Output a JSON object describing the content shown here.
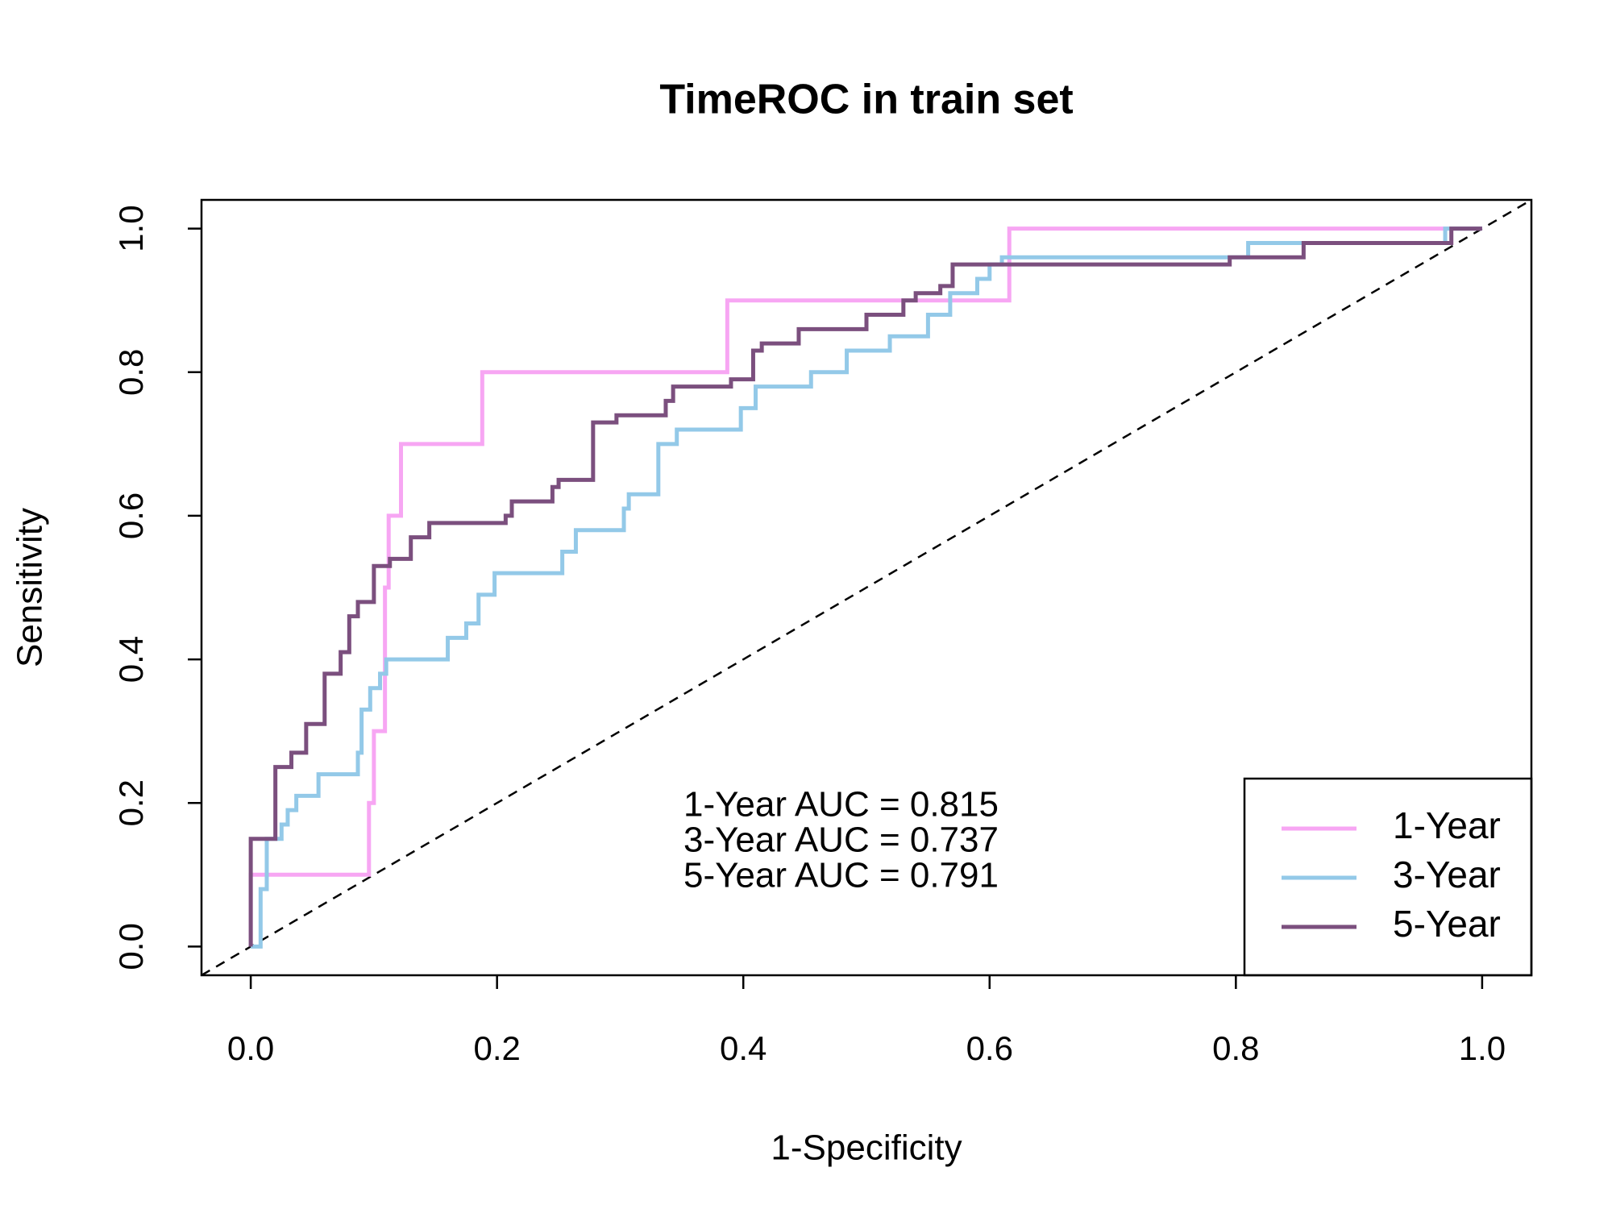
{
  "chart_data": {
    "type": "line",
    "title": "TimeROC in train set",
    "x_label": "1-Specificity",
    "y_label": "Sensitivity",
    "xlim": [
      -0.04,
      1.04
    ],
    "ylim": [
      -0.04,
      1.04
    ],
    "xticks": [
      {
        "value": 0,
        "label": "0.0"
      },
      0.2,
      0.4,
      0.6,
      0.8,
      {
        "value": 1,
        "label": "1.0"
      }
    ],
    "yticks": [
      {
        "value": 0,
        "label": "0.0"
      },
      0.2,
      0.4,
      0.6,
      0.8,
      {
        "value": 1,
        "label": "1.0"
      }
    ],
    "legend": "bottomright",
    "annotations": [
      "1-Year AUC = 0.815",
      "3-Year AUC = 0.737",
      "5-Year AUC = 0.791"
    ],
    "series": [
      {
        "name": "1-Year",
        "color": "#F7A6F3",
        "x": [
          0,
          0,
          0.096,
          0.096,
          0.1,
          0.1,
          0.109,
          0.109,
          0.112,
          0.112,
          0.122,
          0.122,
          0.188,
          0.188,
          0.387,
          0.387,
          0.616,
          0.616,
          1
        ],
        "values": [
          0,
          0.1,
          0.1,
          0.2,
          0.2,
          0.3,
          0.3,
          0.5,
          0.5,
          0.6,
          0.6,
          0.7,
          0.7,
          0.8,
          0.8,
          0.9,
          0.9,
          1,
          1
        ]
      },
      {
        "name": "3-Year",
        "color": "#93C9E8",
        "x": [
          0,
          0.008,
          0.008,
          0.013,
          0.013,
          0.025,
          0.025,
          0.03,
          0.03,
          0.037,
          0.037,
          0.055,
          0.055,
          0.087,
          0.087,
          0.09,
          0.09,
          0.097,
          0.097,
          0.105,
          0.105,
          0.11,
          0.11,
          0.16,
          0.16,
          0.175,
          0.175,
          0.185,
          0.185,
          0.198,
          0.198,
          0.253,
          0.253,
          0.264,
          0.264,
          0.303,
          0.303,
          0.307,
          0.307,
          0.331,
          0.331,
          0.346,
          0.346,
          0.398,
          0.398,
          0.41,
          0.41,
          0.455,
          0.455,
          0.484,
          0.484,
          0.519,
          0.519,
          0.55,
          0.55,
          0.568,
          0.568,
          0.59,
          0.59,
          0.6,
          0.6,
          0.61,
          0.61,
          0.81,
          0.81,
          0.97,
          0.97,
          1
        ],
        "values": [
          0,
          0,
          0.08,
          0.08,
          0.15,
          0.15,
          0.17,
          0.17,
          0.19,
          0.19,
          0.21,
          0.21,
          0.24,
          0.24,
          0.27,
          0.27,
          0.33,
          0.33,
          0.36,
          0.36,
          0.38,
          0.38,
          0.4,
          0.4,
          0.43,
          0.43,
          0.45,
          0.45,
          0.49,
          0.49,
          0.52,
          0.52,
          0.55,
          0.55,
          0.58,
          0.58,
          0.61,
          0.61,
          0.63,
          0.63,
          0.7,
          0.7,
          0.72,
          0.72,
          0.75,
          0.75,
          0.78,
          0.78,
          0.8,
          0.8,
          0.83,
          0.83,
          0.85,
          0.85,
          0.88,
          0.88,
          0.91,
          0.91,
          0.93,
          0.93,
          0.95,
          0.95,
          0.96,
          0.96,
          0.98,
          0.98,
          1,
          1
        ]
      },
      {
        "name": "5-Year",
        "color": "#7B4F7E",
        "x": [
          0,
          0,
          0.02,
          0.02,
          0.033,
          0.033,
          0.045,
          0.045,
          0.06,
          0.06,
          0.073,
          0.073,
          0.08,
          0.08,
          0.087,
          0.087,
          0.1,
          0.1,
          0.113,
          0.113,
          0.13,
          0.13,
          0.145,
          0.145,
          0.207,
          0.207,
          0.212,
          0.212,
          0.245,
          0.245,
          0.25,
          0.25,
          0.278,
          0.278,
          0.297,
          0.297,
          0.337,
          0.337,
          0.343,
          0.343,
          0.39,
          0.39,
          0.408,
          0.408,
          0.415,
          0.415,
          0.445,
          0.445,
          0.5,
          0.5,
          0.53,
          0.53,
          0.54,
          0.54,
          0.56,
          0.56,
          0.57,
          0.57,
          0.795,
          0.795,
          0.855,
          0.855,
          0.975,
          0.975,
          1
        ],
        "values": [
          0,
          0.15,
          0.15,
          0.25,
          0.25,
          0.27,
          0.27,
          0.31,
          0.31,
          0.38,
          0.38,
          0.41,
          0.41,
          0.46,
          0.46,
          0.48,
          0.48,
          0.53,
          0.53,
          0.54,
          0.54,
          0.57,
          0.57,
          0.59,
          0.59,
          0.6,
          0.6,
          0.62,
          0.62,
          0.64,
          0.64,
          0.65,
          0.65,
          0.73,
          0.73,
          0.74,
          0.74,
          0.76,
          0.76,
          0.78,
          0.78,
          0.79,
          0.79,
          0.83,
          0.83,
          0.84,
          0.84,
          0.86,
          0.86,
          0.88,
          0.88,
          0.9,
          0.9,
          0.91,
          0.91,
          0.92,
          0.92,
          0.95,
          0.95,
          0.96,
          0.96,
          0.98,
          0.98,
          1,
          1
        ]
      }
    ]
  }
}
